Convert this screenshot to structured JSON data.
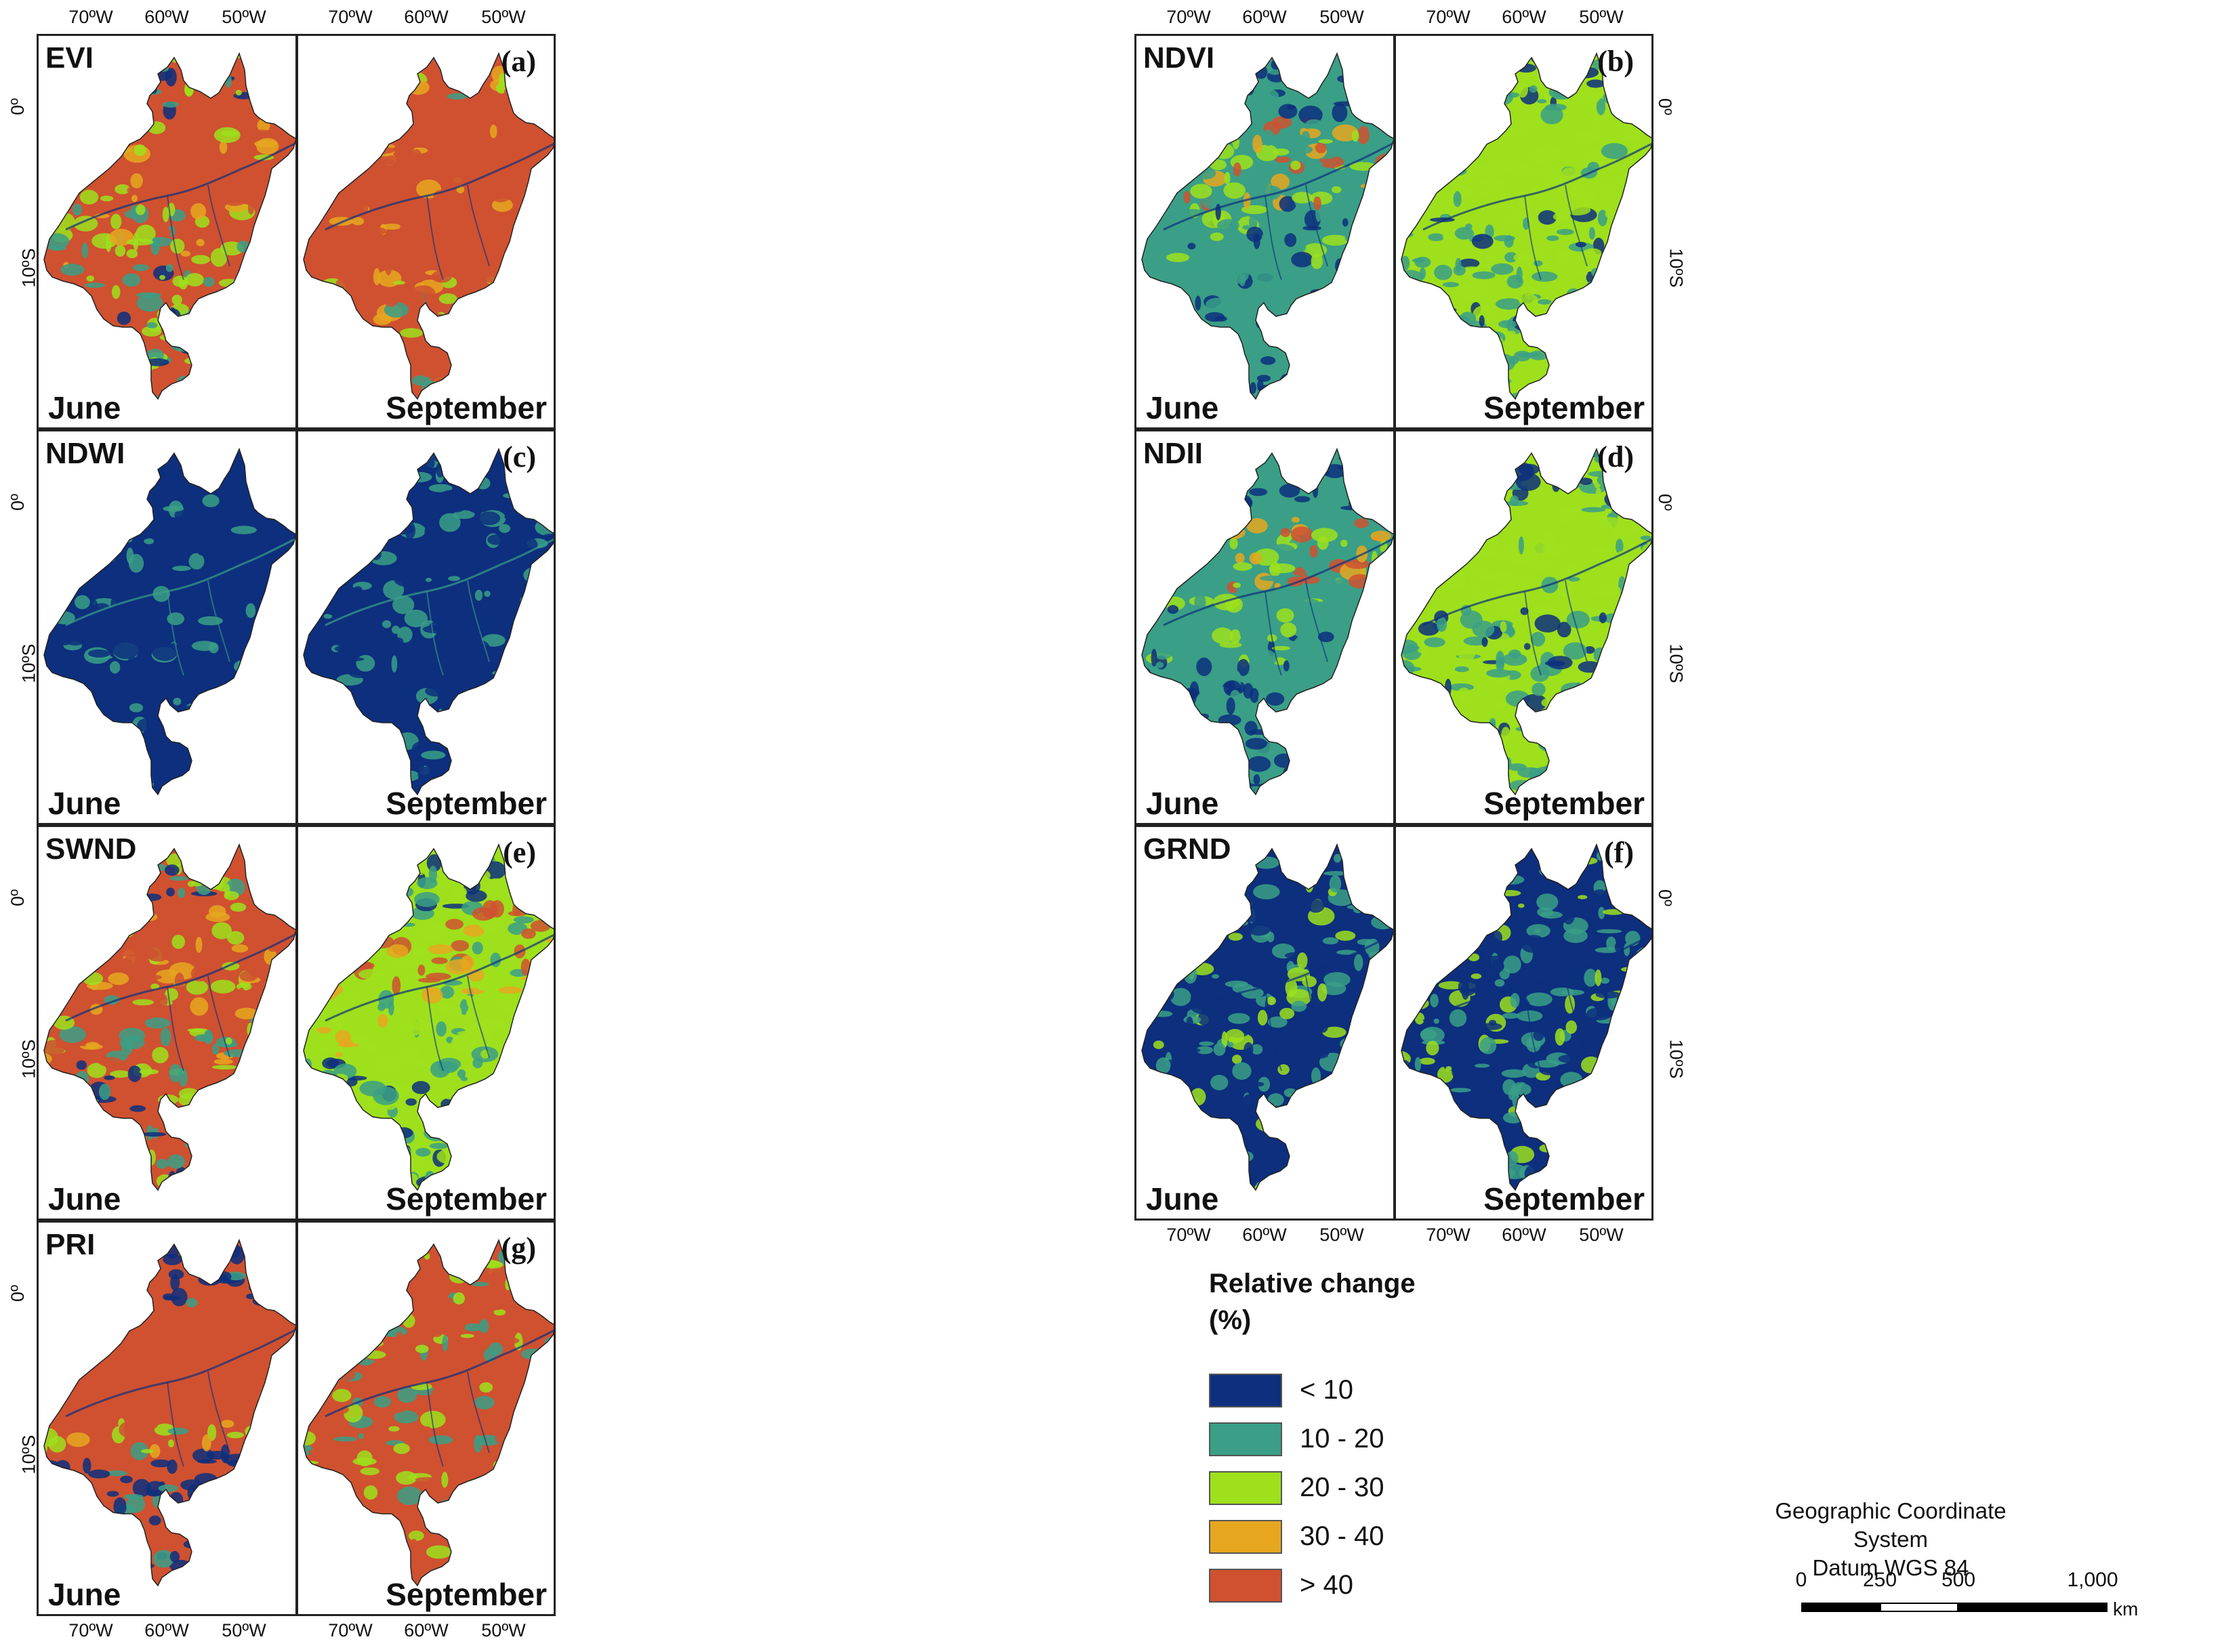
{
  "axis_labels": {
    "lon": [
      "70ºW",
      "60ºW",
      "50ºW"
    ],
    "lat": [
      "0º",
      "10ºS"
    ]
  },
  "months": {
    "left": "June",
    "right": "September"
  },
  "panels": [
    {
      "index": "EVI",
      "letter": "(a)",
      "june": "orange",
      "september": "red"
    },
    {
      "index": "NDVI",
      "letter": "(b)",
      "june": "teal_mixed",
      "september": "green"
    },
    {
      "index": "NDWI",
      "letter": "(c)",
      "june": "navy",
      "september": "navy"
    },
    {
      "index": "NDII",
      "letter": "(d)",
      "june": "teal_mixed",
      "september": "green"
    },
    {
      "index": "SWND",
      "letter": "(e)",
      "june": "orange",
      "september": "mixed"
    },
    {
      "index": "GRND",
      "letter": "(f)",
      "june": "blue_mixed",
      "september": "blue_mixed"
    },
    {
      "index": "PRI",
      "letter": "(g)",
      "june": "red_band",
      "september": "red_mixed"
    }
  ],
  "legend": {
    "title": "Relative change (%)",
    "items": [
      {
        "label": "< 10",
        "color": "#0d2f7e"
      },
      {
        "label": "10 - 20",
        "color": "#3a9f86"
      },
      {
        "label": "20 - 30",
        "color": "#9ee01c"
      },
      {
        "label": "30 - 40",
        "color": "#e6a71f"
      },
      {
        "label": "> 40",
        "color": "#cf5130"
      }
    ]
  },
  "crs": {
    "line1": "Geographic Coordinate System",
    "line2": "Datum WGS 84"
  },
  "scale_bar": {
    "ticks": [
      "0",
      "250",
      "500",
      "1,000"
    ],
    "unit": "km"
  }
}
